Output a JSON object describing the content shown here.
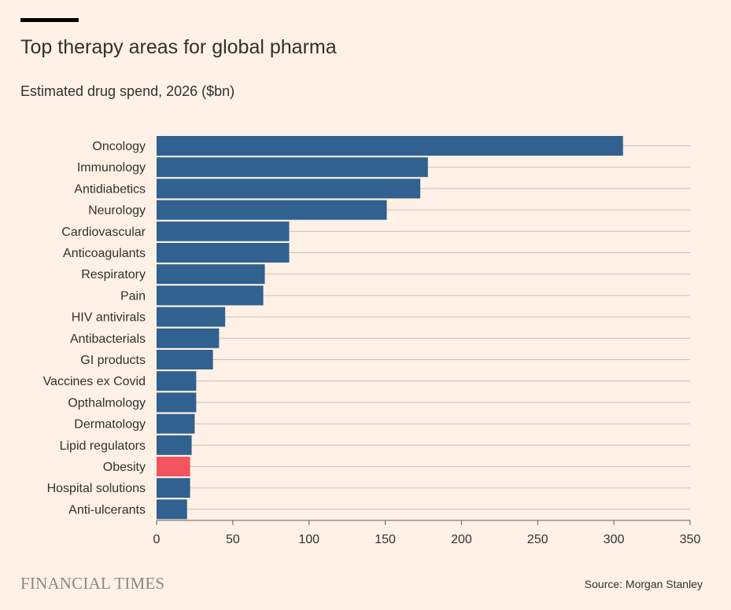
{
  "header": {
    "title": "Top therapy areas for global pharma",
    "subtitle": "Estimated drug spend, 2026 ($bn)"
  },
  "footer": {
    "logo_text": "FINANCIAL TIMES",
    "source": "Source: Morgan Stanley"
  },
  "colors": {
    "background": "#fff1e5",
    "bar": "#306190",
    "highlight": "#f2555f",
    "gridline": "#ccc1b7",
    "text": "#33302e"
  },
  "chart_data": {
    "type": "bar",
    "orientation": "horizontal",
    "title": "Top therapy areas for global pharma",
    "subtitle": "Estimated drug spend, 2026 ($bn)",
    "categories": [
      "Oncology",
      "Immunology",
      "Antidiabetics",
      "Neurology",
      "Cardiovascular",
      "Anticoagulants",
      "Respiratory",
      "Pain",
      "HIV antivirals",
      "Antibacterials",
      "GI products",
      "Vaccines ex Covid",
      "Opthalmology",
      "Dermatology",
      "Lipid regulators",
      "Obesity",
      "Hospital solutions",
      "Anti-ulcerants"
    ],
    "values": [
      306,
      178,
      173,
      151,
      87,
      87,
      71,
      70,
      45,
      41,
      37,
      26,
      26,
      25,
      23,
      22,
      22,
      20
    ],
    "highlighted": [
      "Obesity"
    ],
    "xlim": [
      0,
      350
    ],
    "xticks": [
      0,
      50,
      100,
      150,
      200,
      250,
      300,
      350
    ],
    "xlabel": "",
    "ylabel": "",
    "grid": true,
    "legend": "none"
  }
}
